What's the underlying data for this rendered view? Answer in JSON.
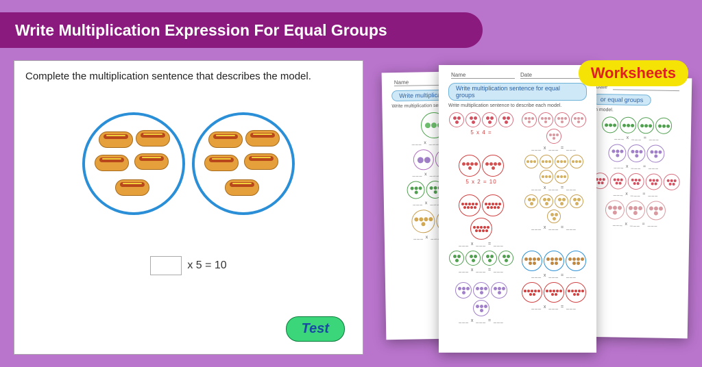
{
  "background_color": "#b974cc",
  "title": {
    "text": "Write Multiplication Expression For Equal Groups",
    "bg_color": "#8a1a7e",
    "text_color": "#ffffff",
    "font_size": 23
  },
  "card": {
    "prompt": "Complete the multiplication sentence that describes the model.",
    "groups": 2,
    "items_per_group": 5,
    "item_name": "hotdog",
    "circle_border_color": "#2a8fd6",
    "equation": {
      "multiplier_blank": true,
      "multiplicand": "x 5 = 10"
    },
    "test_label": "Test",
    "test_bg": "#3bd67a",
    "test_text_color": "#1a4aa3"
  },
  "worksheets_badge": {
    "label": "Worksheets",
    "bg_color": "#f5e306",
    "text_color": "#e02020"
  },
  "sheet_common": {
    "name_label": "Name",
    "date_label": "Date",
    "title_text": "Write multiplication sentence for equal groups",
    "subtitle": "Write multiplication sentence to describe each model.",
    "eq_blank": "___ x ___ = ___"
  },
  "sheet1": {
    "title_short": "Write multiplication",
    "sub_short": "Write multiplication sentence",
    "rows": [
      {
        "circles": 1,
        "dots": 3,
        "size": 38,
        "dsize": 8,
        "border": "#4aa34a",
        "fill": "#6fbf6f"
      },
      {
        "circles": 2,
        "dots": 2,
        "size": 30,
        "dsize": 9,
        "border": "#b070c0",
        "fill": "#a080c8"
      },
      {
        "circles": 3,
        "dots": 4,
        "size": 26,
        "dsize": 5,
        "border": "#50a050",
        "fill": "#509f50"
      },
      {
        "circles": 2,
        "dots": 5,
        "size": 34,
        "dsize": 6,
        "border": "#c9a050",
        "fill": "#d4a850"
      }
    ]
  },
  "sheet2": {
    "example": "5 x 2 = 10",
    "example2": "5 x 4 =",
    "rows": [
      {
        "left": {
          "circles": 4,
          "dots": 3,
          "size": 22,
          "dsize": 5,
          "border": "#d87080",
          "fill": "#d25060"
        },
        "right": {
          "circles": 5,
          "dots": 4,
          "size": 22,
          "dsize": 4,
          "border": "#d87080",
          "fill": "#d89aa0"
        }
      },
      {
        "left": {
          "circles": 2,
          "dots": 5,
          "size": 32,
          "dsize": 5,
          "border": "#d04040",
          "fill": "#d25050"
        },
        "right": {
          "circles": 6,
          "dots": 3,
          "size": 20,
          "dsize": 4,
          "border": "#c9a050",
          "fill": "#d4b060"
        }
      },
      {
        "left": {
          "circles": 3,
          "dots": 9,
          "size": 32,
          "dsize": 4,
          "border": "#d04040",
          "fill": "#d04040"
        },
        "right": {
          "circles": 5,
          "dots": 3,
          "size": 20,
          "dsize": 5,
          "border": "#c9a050",
          "fill": "#d4b060"
        }
      },
      {
        "left": {
          "circles": 4,
          "dots": 3,
          "size": 22,
          "dsize": 5,
          "border": "#50a050",
          "fill": "#50a050"
        },
        "right": {
          "circles": 3,
          "dots": 6,
          "size": 30,
          "dsize": 5,
          "border": "#2a8fd6",
          "fill": "#c08840"
        }
      },
      {
        "left": {
          "circles": 4,
          "dots": 4,
          "size": 24,
          "dsize": 5,
          "border": "#a080c8",
          "fill": "#a080c8"
        },
        "right": {
          "circles": 3,
          "dots": 7,
          "size": 30,
          "dsize": 4,
          "border": "#d04040",
          "fill": "#d04040"
        }
      }
    ]
  },
  "sheet3": {
    "title_short": "or equal groups",
    "sub_short": "ch model.",
    "rows": [
      {
        "circles": 4,
        "dots": 3,
        "size": 24,
        "dsize": 5,
        "border": "#50a050",
        "fill": "#50a050"
      },
      {
        "circles": 3,
        "dots": 4,
        "size": 26,
        "dsize": 5,
        "border": "#a080c8",
        "fill": "#a080c8"
      },
      {
        "circles": 5,
        "dots": 5,
        "size": 24,
        "dsize": 4,
        "border": "#d87080",
        "fill": "#d25060"
      },
      {
        "circles": 3,
        "dots": 4,
        "size": 28,
        "dsize": 6,
        "border": "#d89aa0",
        "fill": "#d89aa0"
      }
    ]
  }
}
